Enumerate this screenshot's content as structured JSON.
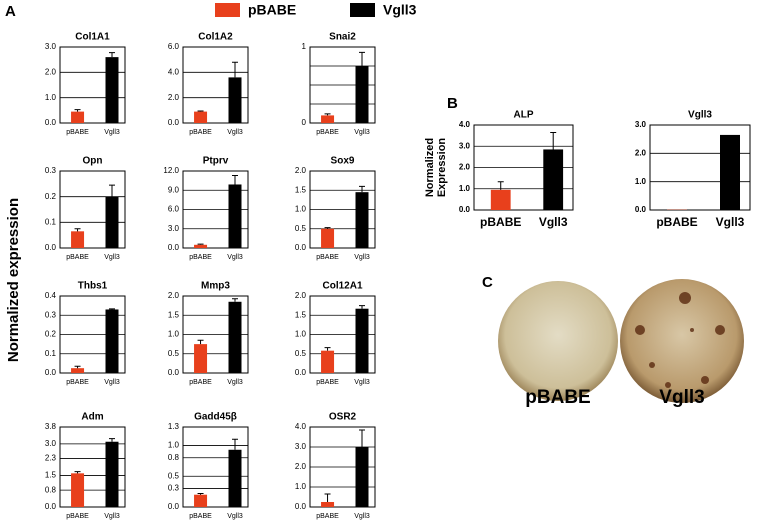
{
  "panel_labels": [
    "A",
    "B",
    "C"
  ],
  "y_axis_label": "Normalized expression",
  "legend": [
    {
      "name": "pBABE",
      "color": "#e8401c"
    },
    {
      "name": "Vgll3",
      "color": "#000000"
    }
  ],
  "photo_labels": [
    "pBABE",
    "Vgll3"
  ],
  "chart_data": [
    {
      "type": "bar",
      "title": "Col1A1",
      "categories": [
        "pBABE",
        "Vgll3"
      ],
      "values": [
        0.45,
        2.6
      ],
      "errors": [
        0.08,
        0.18
      ],
      "colors": [
        "#e8401c",
        "#000000"
      ],
      "ylim": [
        0,
        3
      ],
      "yticks": [
        {
          "value": 0,
          "label": "0.0"
        },
        {
          "value": 1,
          "label": "1.0"
        },
        {
          "value": 2,
          "label": "2.0"
        },
        {
          "value": 3,
          "label": "3.0"
        }
      ],
      "grid": true
    },
    {
      "type": "bar",
      "title": "Col1A2",
      "categories": [
        "pBABE",
        "Vgll3"
      ],
      "values": [
        0.9,
        3.6
      ],
      "errors": [
        0.05,
        1.2
      ],
      "colors": [
        "#e8401c",
        "#000000"
      ],
      "ylim": [
        0,
        6
      ],
      "yticks": [
        {
          "value": 0,
          "label": "0.0"
        },
        {
          "value": 2,
          "label": "2.0"
        },
        {
          "value": 4,
          "label": "4.0"
        },
        {
          "value": 6,
          "label": "6.0"
        }
      ],
      "grid": true
    },
    {
      "type": "bar",
      "title": "Snai2",
      "categories": [
        "pBABE",
        "Vgll3"
      ],
      "values": [
        0.1,
        0.75
      ],
      "errors": [
        0.02,
        0.18
      ],
      "colors": [
        "#e8401c",
        "#000000"
      ],
      "ylim": [
        0,
        1
      ],
      "yticks": [
        0,
        1
      ],
      "grid": true
    },
    {
      "type": "bar",
      "title": "Opn",
      "categories": [
        "pBABE",
        "Vgll3"
      ],
      "values": [
        0.065,
        0.2
      ],
      "errors": [
        0.01,
        0.045
      ],
      "colors": [
        "#e8401c",
        "#000000"
      ],
      "ylim": [
        0,
        0.3
      ],
      "yticks": [
        {
          "value": 0,
          "label": "0.0"
        },
        0.1,
        0.2,
        0.3
      ],
      "grid": true
    },
    {
      "type": "bar",
      "title": "Ptprv",
      "categories": [
        "pBABE",
        "Vgll3"
      ],
      "values": [
        0.5,
        9.9
      ],
      "errors": [
        0.1,
        1.4
      ],
      "colors": [
        "#e8401c",
        "#000000"
      ],
      "ylim": [
        0,
        12
      ],
      "yticks": [
        {
          "value": 0,
          "label": "0.0"
        },
        {
          "value": 3,
          "label": "3.0"
        },
        {
          "value": 6,
          "label": "6.0"
        },
        {
          "value": 9,
          "label": "9.0"
        },
        {
          "value": 12,
          "label": "12.0"
        }
      ],
      "grid": true
    },
    {
      "type": "bar",
      "title": "Sox9",
      "categories": [
        "pBABE",
        "Vgll3"
      ],
      "values": [
        0.5,
        1.45
      ],
      "errors": [
        0.03,
        0.15
      ],
      "colors": [
        "#e8401c",
        "#000000"
      ],
      "ylim": [
        0,
        2
      ],
      "yticks": [
        {
          "value": 0,
          "label": "0.0"
        },
        0.5,
        {
          "value": 1,
          "label": "1.0"
        },
        1.5,
        {
          "value": 2,
          "label": "2.0"
        }
      ],
      "grid": true
    },
    {
      "type": "bar",
      "title": "Thbs1",
      "categories": [
        "pBABE",
        "Vgll3"
      ],
      "values": [
        0.025,
        0.33
      ],
      "errors": [
        0.01,
        0.003
      ],
      "colors": [
        "#e8401c",
        "#000000"
      ],
      "ylim": [
        0,
        0.4
      ],
      "yticks": [
        {
          "value": 0,
          "label": "0.0"
        },
        0.1,
        0.2,
        0.3,
        0.4
      ],
      "grid": true
    },
    {
      "type": "bar",
      "title": "Mmp3",
      "categories": [
        "pBABE",
        "Vgll3"
      ],
      "values": [
        0.75,
        1.85
      ],
      "errors": [
        0.1,
        0.08
      ],
      "colors": [
        "#e8401c",
        "#000000"
      ],
      "ylim": [
        0,
        2
      ],
      "yticks": [
        {
          "value": 0,
          "label": "0.0"
        },
        0.5,
        {
          "value": 1,
          "label": "1.0"
        },
        1.5,
        {
          "value": 2,
          "label": "2.0"
        }
      ],
      "grid": true
    },
    {
      "type": "bar",
      "title": "Col12A1",
      "categories": [
        "pBABE",
        "Vgll3"
      ],
      "values": [
        0.58,
        1.67
      ],
      "errors": [
        0.08,
        0.08
      ],
      "colors": [
        "#e8401c",
        "#000000"
      ],
      "ylim": [
        0,
        2
      ],
      "yticks": [
        {
          "value": 0,
          "label": "0.0"
        },
        0.5,
        {
          "value": 1,
          "label": "1.0"
        },
        1.5,
        {
          "value": 2,
          "label": "2.0"
        }
      ],
      "grid": true
    },
    {
      "type": "bar",
      "title": "Adm",
      "categories": [
        "pBABE",
        "Vgll3"
      ],
      "values": [
        1.6,
        3.1
      ],
      "errors": [
        0.08,
        0.15
      ],
      "colors": [
        "#e8401c",
        "#000000"
      ],
      "ylim": [
        0,
        3.8
      ],
      "yticks": [
        {
          "value": 0,
          "label": "0.0"
        },
        0.8,
        1.5,
        2.3,
        {
          "value": 3,
          "label": "3.0"
        },
        3.8
      ],
      "grid": true
    },
    {
      "type": "bar",
      "title": "Gadd45β",
      "categories": [
        "pBABE",
        "Vgll3"
      ],
      "values": [
        0.2,
        0.93
      ],
      "errors": [
        0.02,
        0.17
      ],
      "colors": [
        "#e8401c",
        "#000000"
      ],
      "ylim": [
        0,
        1.3
      ],
      "yticks": [
        {
          "value": 0,
          "label": "0.0"
        },
        0.3,
        0.5,
        0.8,
        {
          "value": 1,
          "label": "1.0"
        },
        1.3
      ],
      "grid": true
    },
    {
      "type": "bar",
      "title": "OSR2",
      "categories": [
        "pBABE",
        "Vgll3"
      ],
      "values": [
        0.25,
        3.0
      ],
      "errors": [
        0.4,
        0.85
      ],
      "colors": [
        "#e8401c",
        "#000000"
      ],
      "ylim": [
        0,
        4
      ],
      "yticks": [
        {
          "value": 0,
          "label": "0.0"
        },
        {
          "value": 1,
          "label": "1.0"
        },
        {
          "value": 2,
          "label": "2.0"
        },
        {
          "value": 3,
          "label": "3.0"
        },
        {
          "value": 4,
          "label": "4.0"
        }
      ],
      "grid": true
    },
    {
      "type": "bar",
      "title": "ALP",
      "y_label": "Normalized Expression",
      "categories": [
        "pBABE",
        "Vgll3"
      ],
      "values": [
        0.95,
        2.85
      ],
      "errors": [
        0.38,
        0.8
      ],
      "colors": [
        "#e8401c",
        "#000000"
      ],
      "ylim": [
        0,
        4
      ],
      "yticks": [
        {
          "value": 0,
          "label": "0.0"
        },
        {
          "value": 1,
          "label": "1.0"
        },
        {
          "value": 2,
          "label": "2.0"
        },
        {
          "value": 3,
          "label": "3.0"
        },
        {
          "value": 4,
          "label": "4.0"
        }
      ],
      "grid": true
    },
    {
      "type": "bar",
      "title": "Vgll3",
      "categories": [
        "pBABE",
        "Vgll3"
      ],
      "values": [
        0.01,
        2.65
      ],
      "colors": [
        "#e8401c",
        "#000000"
      ],
      "ylim": [
        0,
        3
      ],
      "yticks": [
        {
          "value": 0,
          "label": "0.0"
        },
        {
          "value": 1,
          "label": "1.0"
        },
        {
          "value": 2,
          "label": "2.0"
        },
        {
          "value": 3,
          "label": "3.0"
        }
      ],
      "grid": true
    }
  ]
}
